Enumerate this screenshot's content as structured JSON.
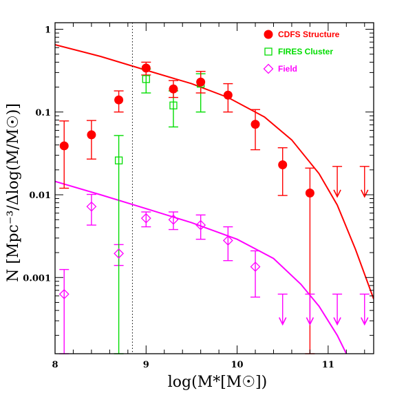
{
  "chart_data": {
    "type": "scatter",
    "xlabel": "log(M*[M☉])",
    "ylabel": "N [Mpc⁻³/Δlog(M/M☉)]",
    "xlim": [
      8,
      11.5
    ],
    "ylim": [
      0.00012,
      1.2
    ],
    "y_scale": "log",
    "x_ticks": [
      "8",
      "9",
      "10",
      "11"
    ],
    "y_ticks": [
      "1",
      "0.1",
      "0.01",
      "0.001"
    ],
    "grid": false,
    "legend_position": "top-right",
    "reference_line": {
      "x": 8.85,
      "style": "dotted"
    },
    "colors": {
      "red": "#ff0000",
      "green": "#00dd00",
      "magenta": "#ff00ff"
    },
    "series": [
      {
        "name": "CDFS Structure",
        "marker": "filled-circle",
        "color": "#ff0000",
        "points": [
          {
            "x": 8.1,
            "y": 0.039,
            "lo": 0.012,
            "hi": 0.078
          },
          {
            "x": 8.4,
            "y": 0.053,
            "lo": 0.027,
            "hi": 0.079
          },
          {
            "x": 8.7,
            "y": 0.14,
            "lo": 0.1,
            "hi": 0.18
          },
          {
            "x": 9.0,
            "y": 0.34,
            "lo": 0.28,
            "hi": 0.4
          },
          {
            "x": 9.3,
            "y": 0.19,
            "lo": 0.15,
            "hi": 0.24
          },
          {
            "x": 9.6,
            "y": 0.23,
            "lo": 0.17,
            "hi": 0.31
          },
          {
            "x": 9.9,
            "y": 0.16,
            "lo": 0.1,
            "hi": 0.22
          },
          {
            "x": 10.2,
            "y": 0.071,
            "lo": 0.035,
            "hi": 0.107
          },
          {
            "x": 10.5,
            "y": 0.023,
            "lo": 0.0098,
            "hi": 0.037
          },
          {
            "x": 10.8,
            "y": 0.0105,
            "lo": 0.00012,
            "hi": 0.021
          }
        ],
        "upper_limits": [
          {
            "x": 11.1,
            "y": 0.022
          },
          {
            "x": 11.4,
            "y": 0.022
          }
        ]
      },
      {
        "name": "FIRES Cluster",
        "marker": "open-square",
        "color": "#00dd00",
        "points": [
          {
            "x": 8.7,
            "y": 0.026,
            "lo": 0.00012,
            "hi": 0.052
          },
          {
            "x": 9.0,
            "y": 0.25,
            "lo": 0.17,
            "hi": 0.33
          },
          {
            "x": 9.3,
            "y": 0.12,
            "lo": 0.066,
            "hi": 0.18
          },
          {
            "x": 9.6,
            "y": 0.22,
            "lo": 0.1,
            "hi": 0.29
          }
        ]
      },
      {
        "name": "Field",
        "marker": "open-diamond",
        "color": "#ff00ff",
        "points": [
          {
            "x": 8.1,
            "y": 0.00063,
            "lo": 0.00012,
            "hi": 0.00125
          },
          {
            "x": 8.4,
            "y": 0.0072,
            "lo": 0.0043,
            "hi": 0.0101
          },
          {
            "x": 8.7,
            "y": 0.00195,
            "lo": 0.0014,
            "hi": 0.0025
          },
          {
            "x": 9.0,
            "y": 0.0052,
            "lo": 0.0041,
            "hi": 0.0062
          },
          {
            "x": 9.3,
            "y": 0.005,
            "lo": 0.0038,
            "hi": 0.0062
          },
          {
            "x": 9.6,
            "y": 0.0043,
            "lo": 0.0029,
            "hi": 0.0057
          },
          {
            "x": 9.9,
            "y": 0.0028,
            "lo": 0.0016,
            "hi": 0.0041
          },
          {
            "x": 10.2,
            "y": 0.00135,
            "lo": 0.00058,
            "hi": 0.0021
          }
        ],
        "upper_limits": [
          {
            "x": 10.5,
            "y": 0.00063
          },
          {
            "x": 10.8,
            "y": 0.00063
          },
          {
            "x": 11.1,
            "y": 0.00063
          },
          {
            "x": 11.4,
            "y": 0.00063
          }
        ]
      }
    ],
    "fit_curves": [
      {
        "color": "#ff0000",
        "points": [
          [
            8.0,
            0.65
          ],
          [
            8.5,
            0.47
          ],
          [
            9.0,
            0.32
          ],
          [
            9.5,
            0.22
          ],
          [
            9.9,
            0.15
          ],
          [
            10.3,
            0.087
          ],
          [
            10.6,
            0.046
          ],
          [
            10.9,
            0.018
          ],
          [
            11.1,
            0.0075
          ],
          [
            11.3,
            0.0022
          ],
          [
            11.5,
            0.00055
          ]
        ]
      },
      {
        "color": "#ff00ff",
        "points": [
          [
            8.0,
            0.0145
          ],
          [
            8.5,
            0.01
          ],
          [
            9.0,
            0.0068
          ],
          [
            9.5,
            0.0046
          ],
          [
            10.0,
            0.0029
          ],
          [
            10.4,
            0.0017
          ],
          [
            10.7,
            0.00083
          ],
          [
            10.9,
            0.00045
          ],
          [
            11.1,
            0.0002
          ],
          [
            11.2,
            0.00012
          ]
        ]
      }
    ]
  }
}
